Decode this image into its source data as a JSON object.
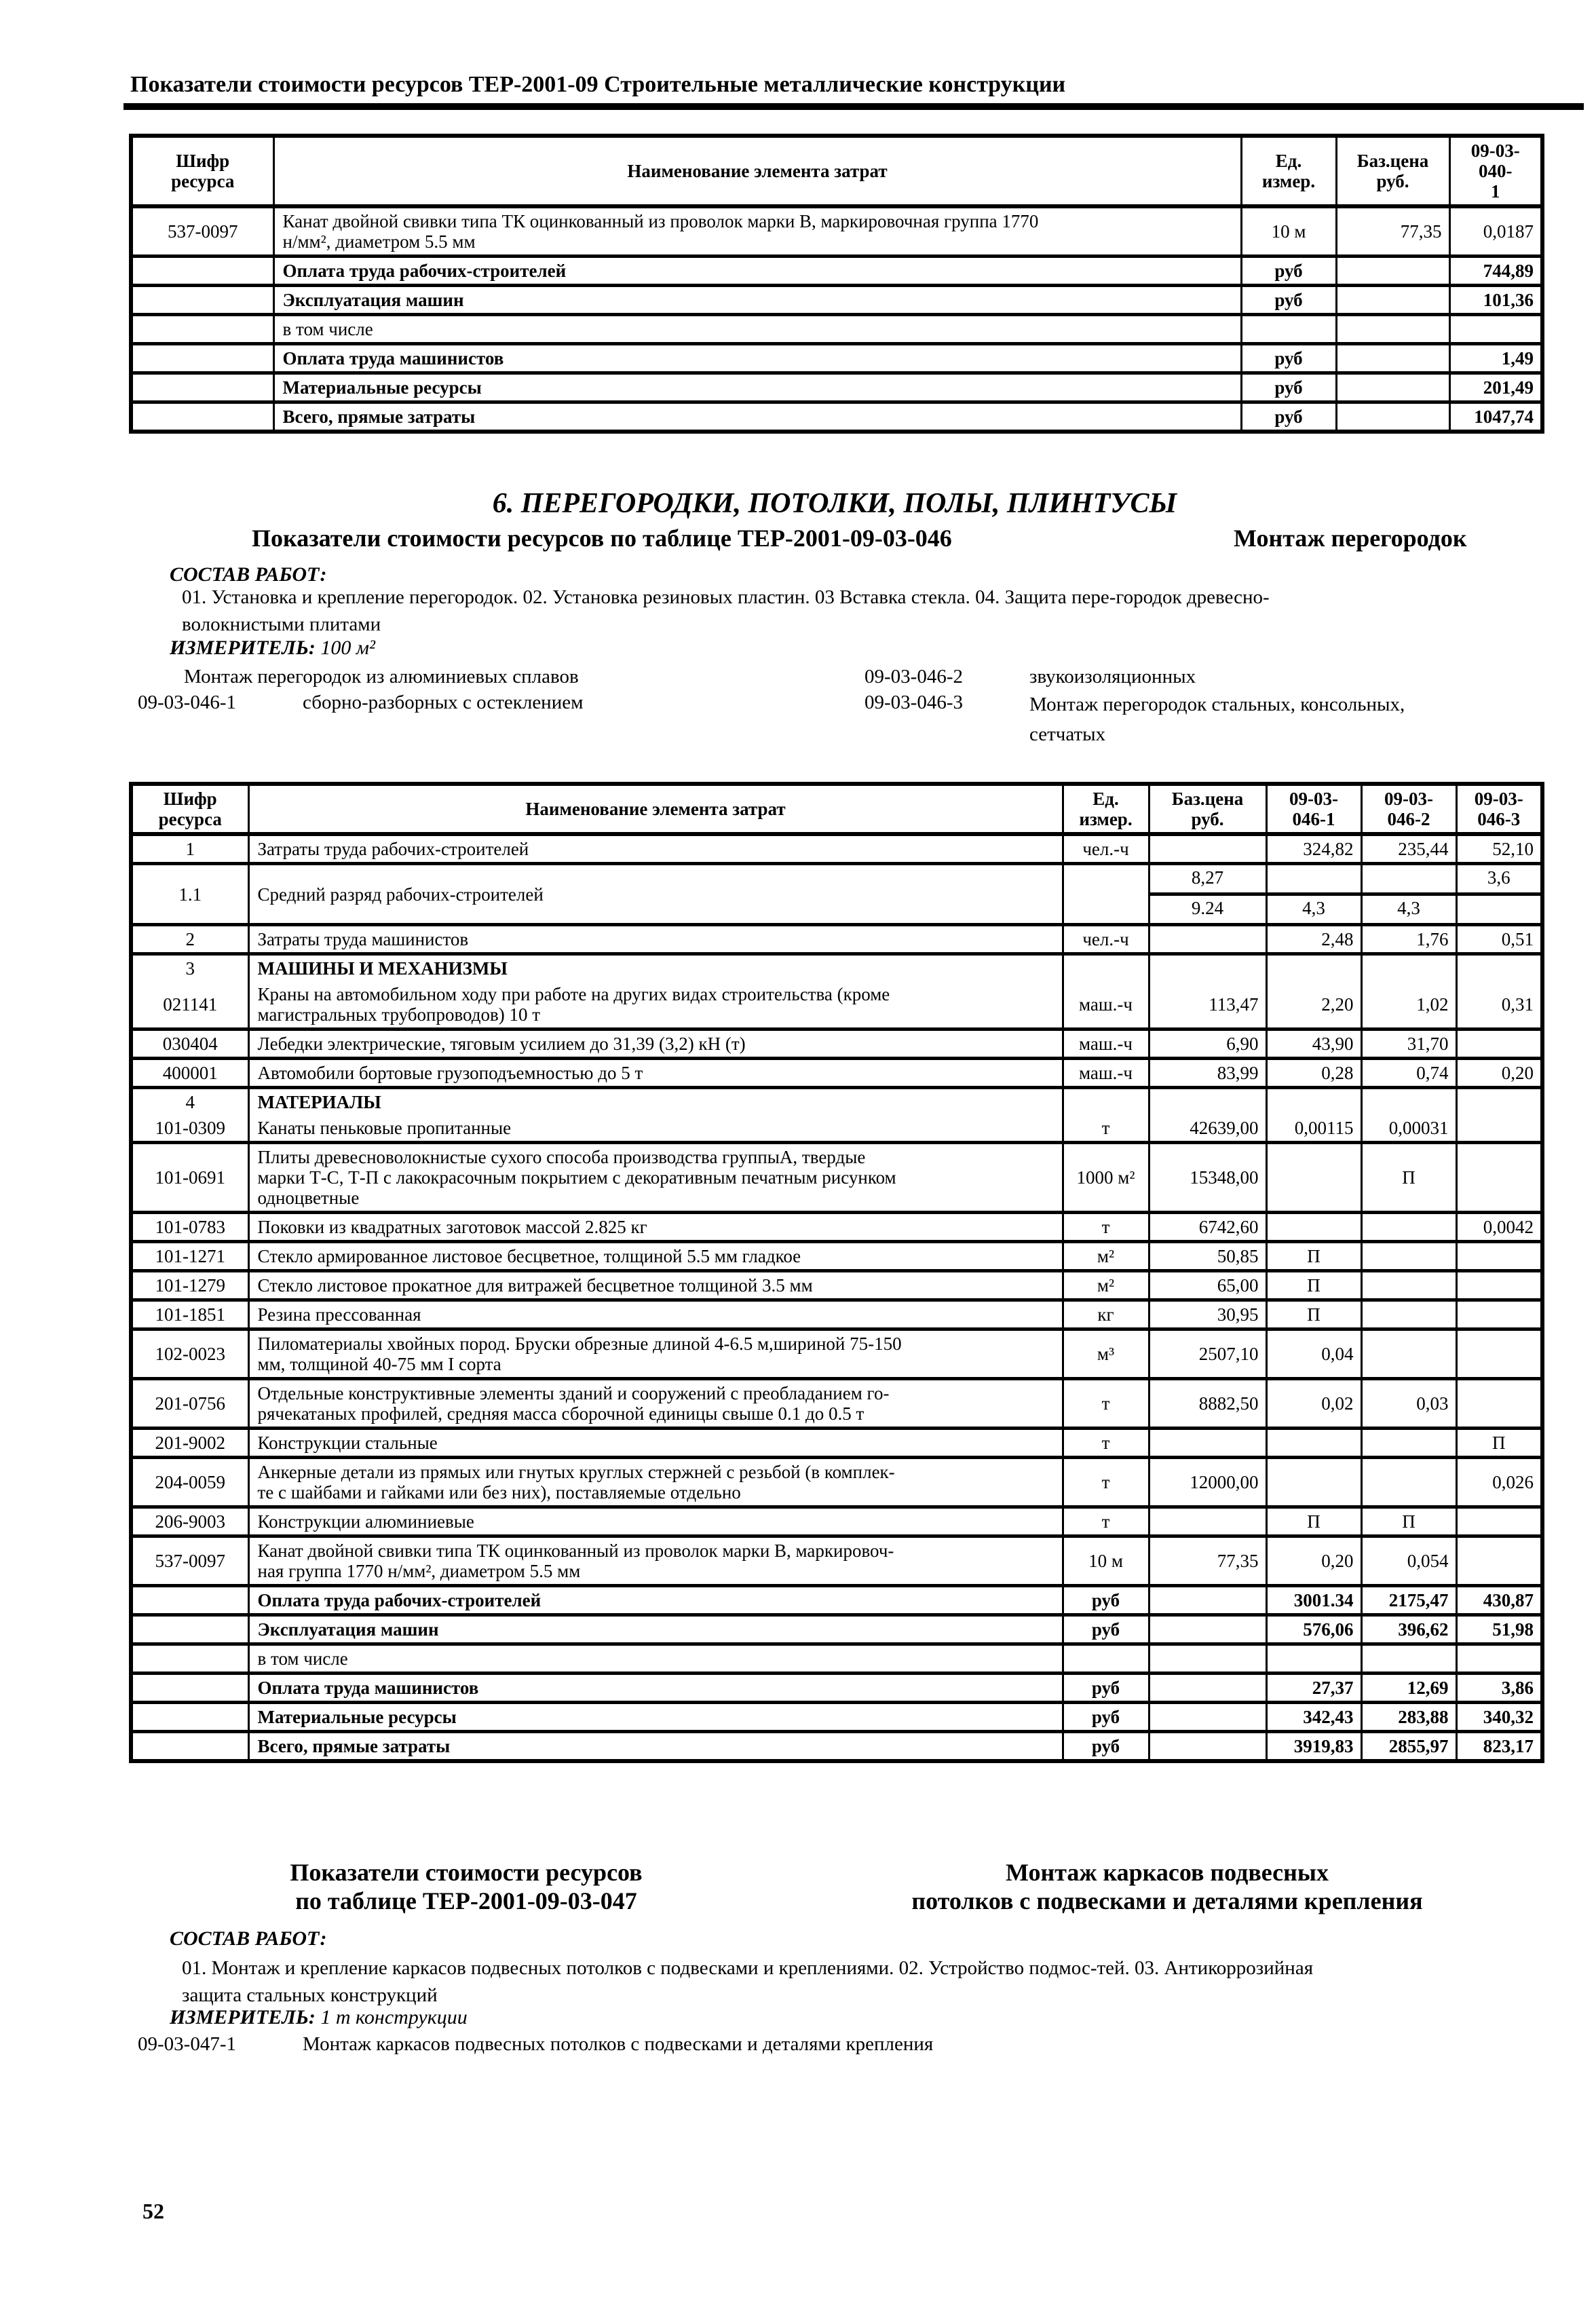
{
  "page": {
    "header": "Показатели стоимости ресурсов ТЕР-2001-09  Строительные металлические конструкции",
    "page_number": "52"
  },
  "table040": {
    "columns": [
      "Шифр\nресурса",
      "Наименование элемента затрат",
      "Ед.\nизмер.",
      "Баз.цена\nруб.",
      "09-03-040-\n1"
    ],
    "rows": [
      {
        "code": "537-0097",
        "name": "Канат двойной свивки типа ТК оцинкованный из проволок марки В, маркировочная группа 1770\nн/мм², диаметром 5.5 мм",
        "unit": "10 м",
        "base": "77,35",
        "v1": "0,0187"
      },
      {
        "name": "Оплата труда рабочих-строителей",
        "unit": "руб",
        "v1": "744,89",
        "b": true
      },
      {
        "name": "Эксплуатация машин",
        "unit": "руб",
        "v1": "101,36",
        "b": true
      },
      {
        "name": "в том числе"
      },
      {
        "name": "Оплата труда машинистов",
        "unit": "руб",
        "v1": "1,49",
        "b": true
      },
      {
        "name": "Материальные ресурсы",
        "unit": "руб",
        "v1": "201,49",
        "b": true
      },
      {
        "name": "Всего, прямые затраты",
        "unit": "руб",
        "v1": "1047,74",
        "b": true
      }
    ]
  },
  "section046": {
    "chapter_title": "6. ПЕРЕГОРОДКИ, ПОТОЛКИ, ПОЛЫ, ПЛИНТУСЫ",
    "subtitle": "Показатели стоимости ресурсов по таблице ТЕР-2001-09-03-046",
    "subtitle_right": "Монтаж перегородок",
    "sostav_label": "СОСТАВ РАБОТ:",
    "sostav_text": "01. Установка и крепление перегородок. 02. Установка резиновых пластин. 03  Вставка стекла. 04. Защита пере-городок древесно-\nволокнистыми плитами",
    "izmeritel_label": "ИЗМЕРИТЕЛЬ:",
    "izmeritel_value": "100 м²",
    "variants": [
      {
        "code": "",
        "label": "Монтаж перегородок из алюминиевых сплавов"
      },
      {
        "code": "09-03-046-2",
        "label": "звукоизоляционных"
      },
      {
        "code": "09-03-046-1",
        "label": "сборно-разборных с остеклением"
      },
      {
        "code": "09-03-046-3",
        "label": "Монтаж перегородок стальных, консольных, сетчатых"
      }
    ]
  },
  "table046": {
    "columns": [
      "Шифр\nресурса",
      "Наименование элемента затрат",
      "Ед.\nизмер.",
      "Баз.цена\nруб.",
      "09-03-\n046-1",
      "09-03-\n046-2",
      "09-03-\n046-3"
    ],
    "rows": [
      {
        "code": "1",
        "name": "Затраты труда рабочих-строителей",
        "unit": "чел.-ч",
        "v1": "324,82",
        "v2": "235,44",
        "v3": "52,10"
      },
      {
        "code": "1.1",
        "name": "Средний разряд рабочих-строителей",
        "unit": "",
        "split": true,
        "top": [
          "8,27",
          "",
          "",
          "3,6"
        ],
        "bottom": [
          "9.24",
          "4,3",
          "4,3",
          ""
        ]
      },
      {
        "code": "2",
        "name": "Затраты труда машинистов",
        "unit": "чел.-ч",
        "v1": "2,48",
        "v2": "1,76",
        "v3": "0,51"
      },
      {
        "code": "3",
        "name": "МАШИНЫ И МЕХАНИЗМЫ",
        "sec": true
      },
      {
        "code": "021141",
        "name": "Краны на автомобильном ходу при работе на других видах строительства (кроме\nмагистральных трубопроводов) 10 т",
        "unit": "маш.-ч",
        "base": "113,47",
        "v1": "2,20",
        "v2": "1,02",
        "v3": "0,31",
        "mrg": true
      },
      {
        "code": "030404",
        "name": "Лебедки электрические, тяговым усилием до 31,39 (3,2) кН (т)",
        "unit": "маш.-ч",
        "base": "6,90",
        "v1": "43,90",
        "v2": "31,70"
      },
      {
        "code": "400001",
        "name": "Автомобили бортовые грузоподъемностью до 5 т",
        "unit": "маш.-ч",
        "base": "83,99",
        "v1": "0,28",
        "v2": "0,74",
        "v3": "0,20"
      },
      {
        "code": "4",
        "name": "МАТЕРИАЛЫ",
        "sec": true
      },
      {
        "code": "101-0309",
        "name": "Канаты пеньковые пропитанные",
        "unit": "т",
        "base": "42639,00",
        "v1": "0,00115",
        "v2": "0,00031",
        "mrg": true
      },
      {
        "code": "101-0691",
        "name": "Плиты древесноволокнистые сухого способа производства группыА, твердые\nмарки Т-С, Т-П с лакокрасочным покрытием с декоративным печатным рисунком\nодноцветные",
        "unit": "1000 м²",
        "base": "15348,00",
        "v2": "П"
      },
      {
        "code": "101-0783",
        "name": "Поковки из квадратных заготовок массой 2.825 кг",
        "unit": "т",
        "base": "6742,60",
        "v3": "0,0042"
      },
      {
        "code": "101-1271",
        "name": "Стекло армированное листовое бесцветное, толщиной 5.5 мм гладкое",
        "unit": "м²",
        "base": "50,85",
        "v1": "П"
      },
      {
        "code": "101-1279",
        "name": "Стекло листовое прокатное для витражей бесцветное толщиной 3.5 мм",
        "unit": "м²",
        "base": "65,00",
        "v1": "П"
      },
      {
        "code": "101-1851",
        "name": "Резина прессованная",
        "unit": "кг",
        "base": "30,95",
        "v1": "П"
      },
      {
        "code": "102-0023",
        "name": "Пиломатериалы хвойных пород. Бруски обрезные длиной 4-6.5 м,шириной 75-150\nмм, толщиной 40-75 мм I сорта",
        "unit": "м³",
        "base": "2507,10",
        "v1": "0,04"
      },
      {
        "code": "201-0756",
        "name": "Отдельные конструктивные элементы зданий и сооружений с преобладанием го-\nрячекатаных профилей, средняя масса сборочной единицы свыше 0.1 до 0.5 т",
        "unit": "т",
        "base": "8882,50",
        "v1": "0,02",
        "v2": "0,03"
      },
      {
        "code": "201-9002",
        "name": "Конструкции стальные",
        "unit": "т",
        "v3": "П"
      },
      {
        "code": "204-0059",
        "name": "Анкерные детали из прямых или гнутых круглых стержней с резьбой (в комплек-\nте с шайбами и гайками или без них), поставляемые отдельно",
        "unit": "т",
        "base": "12000,00",
        "v3": "0,026"
      },
      {
        "code": "206-9003",
        "name": "Конструкции алюминиевые",
        "unit": "т",
        "v1": "П",
        "v2": "П"
      },
      {
        "code": "537-0097",
        "name": "Канат двойной свивки типа ТК оцинкованный из проволок марки В, маркировоч-\nная группа 1770 н/мм², диаметром 5.5 мм",
        "unit": "10 м",
        "base": "77,35",
        "v1": "0,20",
        "v2": "0,054"
      },
      {
        "name": "Оплата труда рабочих-строителей",
        "unit": "руб",
        "v1": "3001.34",
        "v2": "2175,47",
        "v3": "430,87",
        "b": true
      },
      {
        "name": "Эксплуатация машин",
        "unit": "руб",
        "v1": "576,06",
        "v2": "396,62",
        "v3": "51,98",
        "b": true
      },
      {
        "name": "в том числе"
      },
      {
        "name": "Оплата труда машинистов",
        "unit": "руб",
        "v1": "27,37",
        "v2": "12,69",
        "v3": "3,86",
        "b": true
      },
      {
        "name": "Материальные ресурсы",
        "unit": "руб",
        "v1": "342,43",
        "v2": "283,88",
        "v3": "340,32",
        "b": true
      },
      {
        "name": "Всего, прямые затраты",
        "unit": "руб",
        "v1": "3919,83",
        "v2": "2855,97",
        "v3": "823,17",
        "b": true
      }
    ]
  },
  "section047": {
    "subtitle": "Показатели стоимости ресурсов\nпо таблице ТЕР-2001-09-03-047",
    "subtitle_right": "Монтаж каркасов подвесных\nпотолков с подвесками и деталями крепления",
    "sostav_label": "СОСТАВ РАБОТ:",
    "sostav_text": "01. Монтаж и крепление каркасов подвесных потолков с подвесками и креплениями. 02. Устройство подмос-тей. 03. Антикоррозийная\nзащита стальных конструкций",
    "izmeritel_label": "ИЗМЕРИТЕЛЬ:",
    "izmeritel_value": "1 т конструкции",
    "item_code": "09-03-047-1",
    "item_label": "Монтаж каркасов подвесных потолков с подвесками и деталями крепления"
  }
}
